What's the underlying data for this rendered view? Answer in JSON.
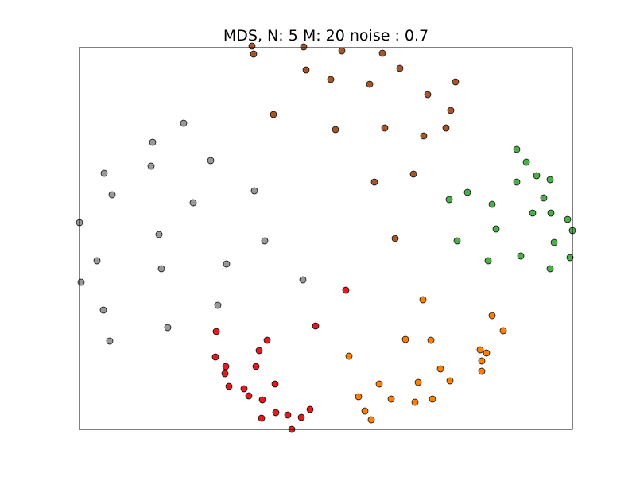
{
  "chart_data": {
    "type": "scatter",
    "title": "MDS, N: 5 M: 20 noise : 0.7",
    "xlabel": "",
    "ylabel": "",
    "xlim": [
      0,
      620
    ],
    "ylim": [
      0,
      480
    ],
    "grid": false,
    "legend": "none",
    "series": [
      {
        "color": "#a65628",
        "points": [
          [
            217,
            482
          ],
          [
            282,
            481
          ],
          [
            330,
            476
          ],
          [
            381,
            473
          ],
          [
            219,
            472
          ],
          [
            285,
            452
          ],
          [
            316,
            440
          ],
          [
            403,
            454
          ],
          [
            473,
            437
          ],
          [
            365,
            434
          ],
          [
            438,
            421
          ],
          [
            467,
            401
          ],
          [
            244,
            396
          ],
          [
            384,
            379
          ],
          [
            322,
            377
          ],
          [
            461,
            379
          ],
          [
            433,
            369
          ],
          [
            420,
            321
          ],
          [
            371,
            311
          ],
          [
            397,
            240
          ]
        ]
      },
      {
        "color": "#999999",
        "points": [
          [
            131,
            385
          ],
          [
            92,
            361
          ],
          [
            90,
            331
          ],
          [
            165,
            338
          ],
          [
            31,
            322
          ],
          [
            41,
            295
          ],
          [
            220,
            300
          ],
          [
            143,
            285
          ],
          [
            0,
            260
          ],
          [
            100,
            245
          ],
          [
            233,
            237
          ],
          [
            22,
            212
          ],
          [
            103,
            202
          ],
          [
            185,
            208
          ],
          [
            281,
            188
          ],
          [
            2,
            185
          ],
          [
            174,
            156
          ],
          [
            30,
            150
          ],
          [
            111,
            128
          ],
          [
            38,
            111
          ]
        ]
      },
      {
        "color": "#4daf4a",
        "points": [
          [
            550,
            352
          ],
          [
            562,
            336
          ],
          [
            575,
            319
          ],
          [
            550,
            311
          ],
          [
            592,
            314
          ],
          [
            488,
            298
          ],
          [
            584,
            291
          ],
          [
            465,
            289
          ],
          [
            519,
            283
          ],
          [
            570,
            272
          ],
          [
            593,
            272
          ],
          [
            614,
            264
          ],
          [
            620,
            250
          ],
          [
            524,
            252
          ],
          [
            475,
            237
          ],
          [
            597,
            235
          ],
          [
            555,
            218
          ],
          [
            617,
            216
          ],
          [
            514,
            212
          ],
          [
            592,
            202
          ]
        ]
      },
      {
        "color": "#ff7f00",
        "points": [
          [
            432,
            163
          ],
          [
            519,
            143
          ],
          [
            533,
            124
          ],
          [
            410,
            113
          ],
          [
            442,
            112
          ],
          [
            504,
            100
          ],
          [
            512,
            96
          ],
          [
            339,
            92
          ],
          [
            506,
            86
          ],
          [
            506,
            73
          ],
          [
            454,
            76
          ],
          [
            377,
            57
          ],
          [
            426,
            59
          ],
          [
            466,
            61
          ],
          [
            351,
            41
          ],
          [
            392,
            38
          ],
          [
            444,
            38
          ],
          [
            422,
            34
          ],
          [
            359,
            23
          ],
          [
            367,
            12
          ]
        ]
      },
      {
        "color": "#e41a1c",
        "points": [
          [
            335,
            175
          ],
          [
            297,
            130
          ],
          [
            172,
            123
          ],
          [
            236,
            112
          ],
          [
            226,
            99
          ],
          [
            171,
            91
          ],
          [
            184,
            79
          ],
          [
            222,
            79
          ],
          [
            183,
            70
          ],
          [
            246,
            57
          ],
          [
            188,
            54
          ],
          [
            207,
            51
          ],
          [
            213,
            42
          ],
          [
            230,
            37
          ],
          [
            290,
            25
          ],
          [
            247,
            21
          ],
          [
            262,
            18
          ],
          [
            229,
            14
          ],
          [
            279,
            15
          ],
          [
            267,
            0
          ]
        ]
      }
    ]
  }
}
